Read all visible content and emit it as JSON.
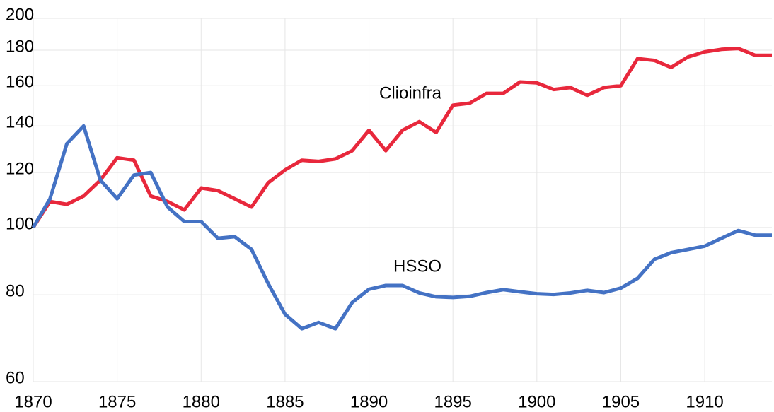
{
  "chart_data": {
    "type": "line",
    "x": [
      1870,
      1871,
      1872,
      1873,
      1874,
      1875,
      1876,
      1877,
      1878,
      1879,
      1880,
      1881,
      1882,
      1883,
      1884,
      1885,
      1886,
      1887,
      1888,
      1889,
      1890,
      1891,
      1892,
      1893,
      1894,
      1895,
      1896,
      1897,
      1898,
      1899,
      1900,
      1901,
      1902,
      1903,
      1904,
      1905,
      1906,
      1907,
      1908,
      1909,
      1910,
      1911,
      1912,
      1913,
      1914
    ],
    "series": [
      {
        "name": "Clioinfra",
        "color": "#e8283c",
        "values": [
          100,
          109,
          108,
          111,
          117,
          126,
          125,
          111,
          109,
          106,
          114,
          113,
          110,
          107,
          116,
          121,
          125,
          124.5,
          125.5,
          129,
          138,
          129,
          138,
          142,
          137,
          150,
          151,
          156,
          156,
          162,
          161.5,
          158,
          159,
          155,
          159,
          160,
          175,
          174,
          170,
          176,
          179,
          180.5,
          181,
          177,
          177
        ]
      },
      {
        "name": "HSSO",
        "color": "#4472c4",
        "values": [
          100,
          110,
          132,
          140,
          117,
          110,
          119,
          120,
          107,
          102,
          102,
          96.5,
          97,
          93,
          83,
          75,
          71.5,
          73,
          71.5,
          78,
          81.5,
          82.5,
          82.5,
          80.5,
          79.5,
          79.3,
          79.6,
          80.6,
          81.4,
          80.8,
          80.3,
          80.1,
          80.5,
          81.2,
          80.6,
          81.8,
          84.5,
          90,
          92,
          93,
          94,
          96.5,
          99,
          97.5,
          97.5
        ]
      }
    ],
    "xlim": [
      1870,
      1914
    ],
    "xticks": [
      1870,
      1875,
      1880,
      1885,
      1890,
      1895,
      1900,
      1905,
      1910
    ],
    "ylim": [
      60,
      200
    ],
    "yticks": [
      60,
      80,
      100,
      120,
      140,
      160,
      180,
      200
    ],
    "log_y": true,
    "grid": true
  }
}
